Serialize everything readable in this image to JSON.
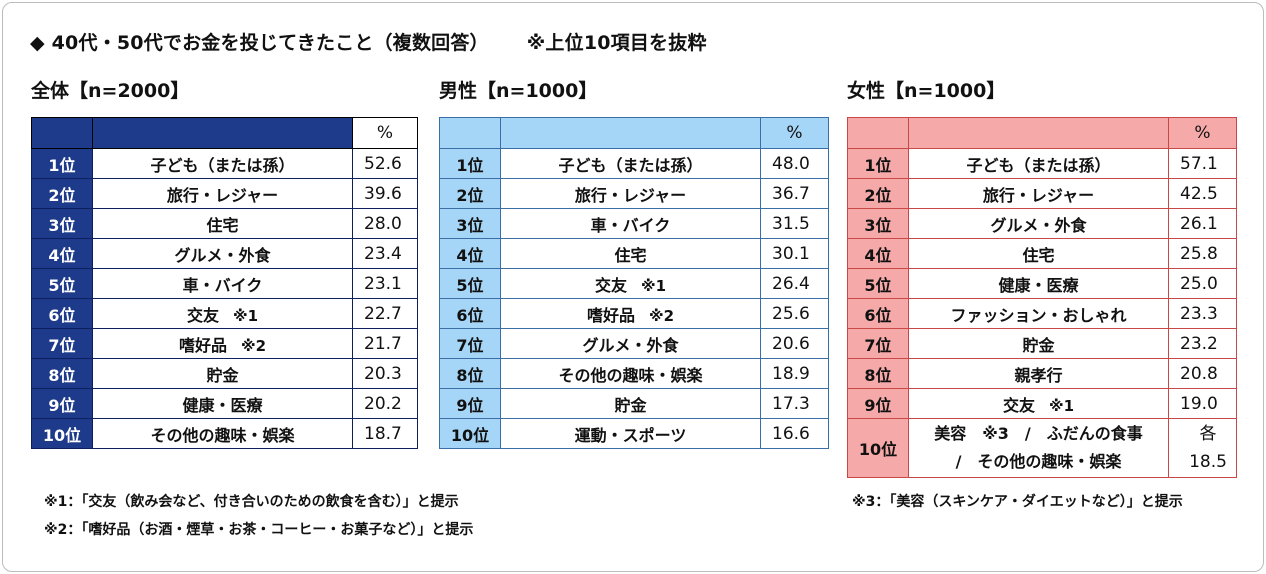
{
  "title": "◆ 40代・50代でお金を投じてきたこと（複数回答）",
  "title_note": "※上位10項目を抜粋",
  "percent_header": "%",
  "overall": {
    "label": "全体【n=2000】",
    "rows": [
      {
        "rank": "1位",
        "item": "子ども（または孫）",
        "mark": "",
        "pct": "52.6"
      },
      {
        "rank": "2位",
        "item": "旅行・レジャー",
        "mark": "",
        "pct": "39.6"
      },
      {
        "rank": "3位",
        "item": "住宅",
        "mark": "",
        "pct": "28.0"
      },
      {
        "rank": "4位",
        "item": "グルメ・外食",
        "mark": "",
        "pct": "23.4"
      },
      {
        "rank": "5位",
        "item": "車・バイク",
        "mark": "",
        "pct": "23.1"
      },
      {
        "rank": "6位",
        "item": "交友",
        "mark": "※1",
        "pct": "22.7"
      },
      {
        "rank": "7位",
        "item": "嗜好品",
        "mark": "※2",
        "pct": "21.7"
      },
      {
        "rank": "8位",
        "item": "貯金",
        "mark": "",
        "pct": "20.3"
      },
      {
        "rank": "9位",
        "item": "健康・医療",
        "mark": "",
        "pct": "20.2"
      },
      {
        "rank": "10位",
        "item": "その他の趣味・娯楽",
        "mark": "",
        "pct": "18.7"
      }
    ]
  },
  "male": {
    "label": "男性【n=1000】",
    "rows": [
      {
        "rank": "1位",
        "item": "子ども（または孫）",
        "mark": "",
        "pct": "48.0"
      },
      {
        "rank": "2位",
        "item": "旅行・レジャー",
        "mark": "",
        "pct": "36.7"
      },
      {
        "rank": "3位",
        "item": "車・バイク",
        "mark": "",
        "pct": "31.5"
      },
      {
        "rank": "4位",
        "item": "住宅",
        "mark": "",
        "pct": "30.1"
      },
      {
        "rank": "5位",
        "item": "交友",
        "mark": "※1",
        "pct": "26.4"
      },
      {
        "rank": "6位",
        "item": "嗜好品",
        "mark": "※2",
        "pct": "25.6"
      },
      {
        "rank": "7位",
        "item": "グルメ・外食",
        "mark": "",
        "pct": "20.6"
      },
      {
        "rank": "8位",
        "item": "その他の趣味・娯楽",
        "mark": "",
        "pct": "18.9"
      },
      {
        "rank": "9位",
        "item": "貯金",
        "mark": "",
        "pct": "17.3"
      },
      {
        "rank": "10位",
        "item": "運動・スポーツ",
        "mark": "",
        "pct": "16.6"
      }
    ]
  },
  "female": {
    "label": "女性【n=1000】",
    "rows": [
      {
        "rank": "1位",
        "item": "子ども（または孫）",
        "mark": "",
        "pct": "57.1"
      },
      {
        "rank": "2位",
        "item": "旅行・レジャー",
        "mark": "",
        "pct": "42.5"
      },
      {
        "rank": "3位",
        "item": "グルメ・外食",
        "mark": "",
        "pct": "26.1"
      },
      {
        "rank": "4位",
        "item": "住宅",
        "mark": "",
        "pct": "25.8"
      },
      {
        "rank": "5位",
        "item": "健康・医療",
        "mark": "",
        "pct": "25.0"
      },
      {
        "rank": "6位",
        "item": "ファッション・おしゃれ",
        "mark": "",
        "pct": "23.3"
      },
      {
        "rank": "7位",
        "item": "貯金",
        "mark": "",
        "pct": "23.2"
      },
      {
        "rank": "8位",
        "item": "親孝行",
        "mark": "",
        "pct": "20.8"
      },
      {
        "rank": "9位",
        "item": "交友",
        "mark": "※1",
        "pct": "19.0"
      }
    ],
    "row10": {
      "rank": "10位",
      "item_line1": "美容　※3　/　ふだんの食事",
      "item_line2": "/　その他の趣味・娯楽",
      "pct_line1": "各",
      "pct_line2": "18.5"
    }
  },
  "footnotes": {
    "note1": "※1：「交友（飲み会など、付き合いのための飲食を含む）」と提示",
    "note2": "※2：「嗜好品（お酒・煙草・お茶・コーヒー・お菓子など）」と提示",
    "note3": "※3：「美容（スキンケア・ダイエットなど）」と提示"
  }
}
